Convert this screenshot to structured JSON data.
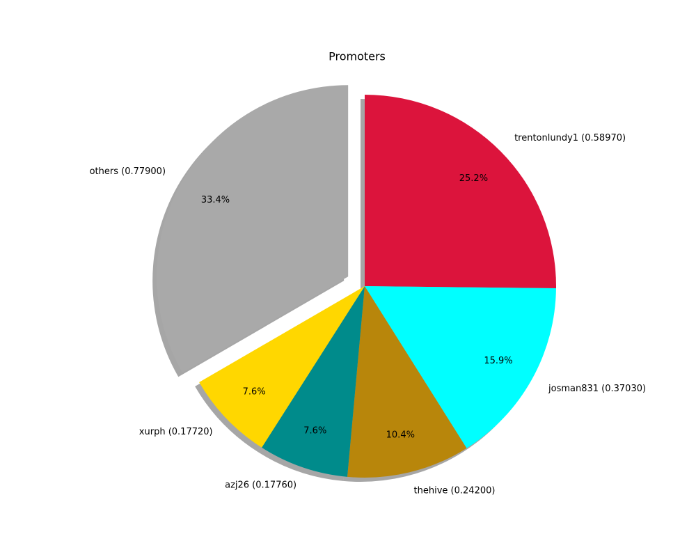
{
  "chart_data": {
    "type": "pie",
    "title": "Promoters",
    "categories": [
      "trentonlundy1 (0.58970)",
      "josman831 (0.37030)",
      "thehive (0.24200)",
      "azj26 (0.17760)",
      "xurph (0.17720)",
      "others (0.77900)"
    ],
    "values": [
      25.2,
      15.9,
      10.4,
      7.6,
      7.6,
      33.4
    ],
    "value_labels": [
      "25.2%",
      "15.9%",
      "10.4%",
      "7.6%",
      "7.6%",
      "33.4%"
    ],
    "colors": [
      "#dc143c",
      "#00ffff",
      "#b8860b",
      "#008b8b",
      "#ffd700",
      "#a9a9a9"
    ],
    "explode": [
      0,
      0,
      0,
      0,
      0,
      0.1
    ],
    "shadow": true
  }
}
